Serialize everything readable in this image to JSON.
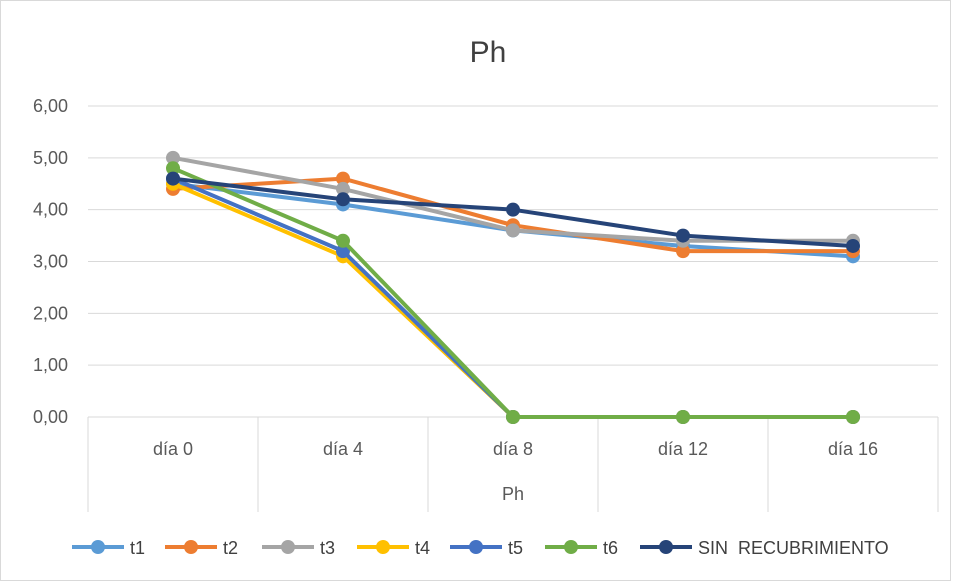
{
  "chart_data": {
    "type": "line",
    "title": "Ph",
    "xlabel": "Ph",
    "ylabel": "",
    "categories": [
      "día 0",
      "día 4",
      "día 8",
      "día 12",
      "día 16"
    ],
    "ylim": [
      0,
      6
    ],
    "y_ticks": [
      "0,00",
      "1,00",
      "2,00",
      "3,00",
      "4,00",
      "5,00",
      "6,00"
    ],
    "grid": true,
    "legend_position": "bottom",
    "series": [
      {
        "name": "t1",
        "color": "#5B9BD5",
        "values": [
          4.5,
          4.1,
          3.6,
          3.3,
          3.1
        ]
      },
      {
        "name": "t2",
        "color": "#ED7D31",
        "values": [
          4.4,
          4.6,
          3.7,
          3.2,
          3.2
        ]
      },
      {
        "name": "t3",
        "color": "#A5A5A5",
        "values": [
          5.0,
          4.4,
          3.6,
          3.4,
          3.4
        ]
      },
      {
        "name": "t4",
        "color": "#FFC000",
        "values": [
          4.5,
          3.1,
          0.0,
          0.0,
          0.0
        ]
      },
      {
        "name": "t5",
        "color": "#4472C4",
        "values": [
          4.6,
          3.2,
          0.0,
          0.0,
          0.0
        ]
      },
      {
        "name": "t6",
        "color": "#70AD47",
        "values": [
          4.8,
          3.4,
          0.0,
          0.0,
          0.0
        ]
      },
      {
        "name": "SIN  RECUBRIMIENTO",
        "color": "#264478",
        "values": [
          4.6,
          4.2,
          4.0,
          3.5,
          3.3
        ]
      }
    ]
  }
}
